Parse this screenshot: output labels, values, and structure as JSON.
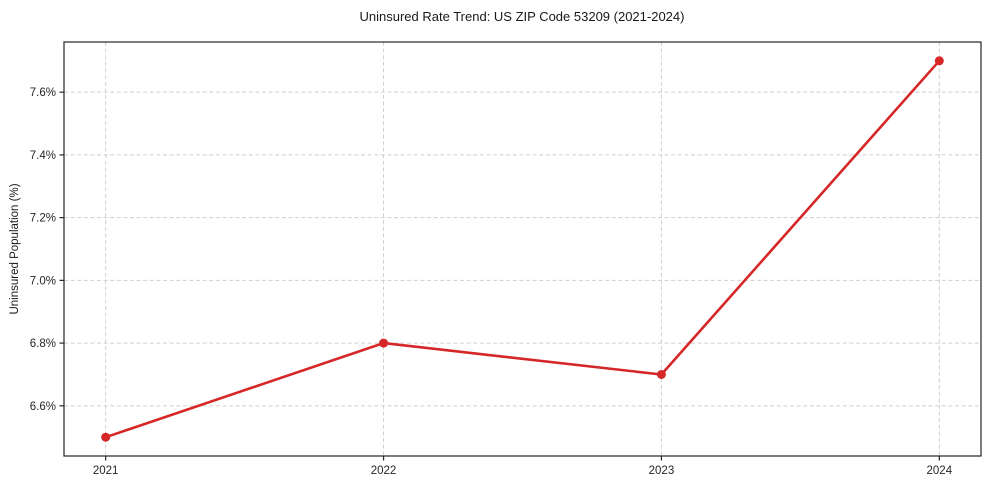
{
  "chart_data": {
    "type": "line",
    "title": "Uninsured Rate Trend: US ZIP Code 53209 (2021-2024)",
    "xlabel": "",
    "ylabel": "Uninsured Population (%)",
    "x": [
      2021,
      2022,
      2023,
      2024
    ],
    "series": [
      {
        "name": "uninsured-rate",
        "values": [
          6.5,
          6.8,
          6.7,
          7.7
        ],
        "color": "#d62728"
      }
    ],
    "x_tick_labels": [
      "2021",
      "2022",
      "2023",
      "2024"
    ],
    "x_tick_values": [
      2021,
      2022,
      2023,
      2024
    ],
    "y_tick_labels": [
      "6.6%",
      "6.8%",
      "7.0%",
      "7.2%",
      "7.4%",
      "7.6%"
    ],
    "y_tick_values": [
      6.6,
      6.8,
      7.0,
      7.2,
      7.4,
      7.6
    ],
    "xlim": [
      2020.85,
      2024.15
    ],
    "ylim": [
      6.44,
      7.76
    ],
    "grid": true,
    "grid_style": "dashed",
    "legend": "none",
    "colors": {
      "line": "#d62728",
      "marker": "#d62728",
      "grid": "#cfcfcf",
      "axis": "#262626",
      "text": "#1a1a1a",
      "background": "#ffffff"
    }
  }
}
